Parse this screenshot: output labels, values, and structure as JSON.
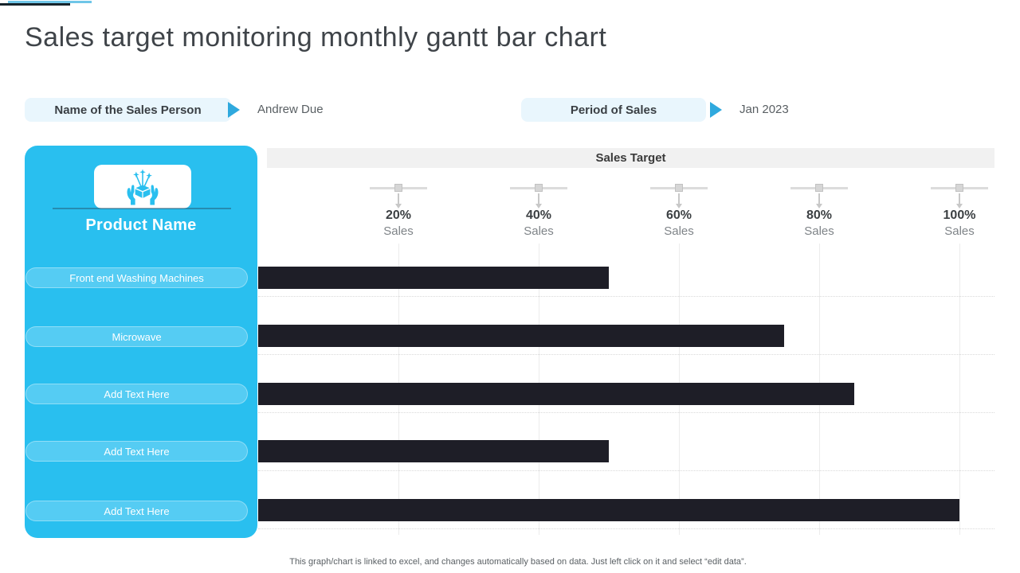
{
  "slide": {
    "title": "Sales target monitoring monthly gantt bar chart",
    "footer": "This graph/chart is linked to excel, and changes automatically based on data. Just left click on it and select “edit data”."
  },
  "header_fields": {
    "sales_person_label": "Name of the Sales Person",
    "sales_person_value": "Andrew Due",
    "period_label": "Period of Sales",
    "period_value": "Jan 2023"
  },
  "product_panel": {
    "header": "Product Name",
    "icon": "hands-presenting-product-icon",
    "items": [
      "Front end Washing Machines",
      "Microwave",
      "Add Text Here",
      "Add Text Here",
      "Add Text Here"
    ]
  },
  "chart": {
    "header": "Sales Target",
    "ticks": [
      {
        "pct": "20%",
        "label": "Sales"
      },
      {
        "pct": "40%",
        "label": "Sales"
      },
      {
        "pct": "60%",
        "label": "Sales"
      },
      {
        "pct": "80%",
        "label": "Sales"
      },
      {
        "pct": "100%",
        "label": "Sales"
      }
    ]
  },
  "chart_data": {
    "type": "bar",
    "orientation": "horizontal",
    "title": "Sales Target",
    "categories": [
      "Front end Washing Machines",
      "Microwave",
      "Add Text Here",
      "Add Text Here",
      "Add Text Here"
    ],
    "values": [
      50,
      75,
      85,
      50,
      100
    ],
    "unit": "percent sales",
    "x_tick_labels": [
      "20% Sales",
      "40% Sales",
      "60% Sales",
      "80% Sales",
      "100% Sales"
    ],
    "xlim": [
      0,
      105
    ],
    "grid": true,
    "bar_color": "#1E1E27"
  },
  "colors": {
    "panel_blue": "#29BFEF",
    "item_pill_blue": "#55CCF3",
    "field_pill_bg": "#E9F6FD",
    "arrow_blue": "#2FA9DE",
    "bar_dark": "#1E1E27",
    "chart_header_bg": "#F1F1F1",
    "accent_line_blue": "#6FC6E8",
    "accent_line_dark": "#17242B"
  }
}
